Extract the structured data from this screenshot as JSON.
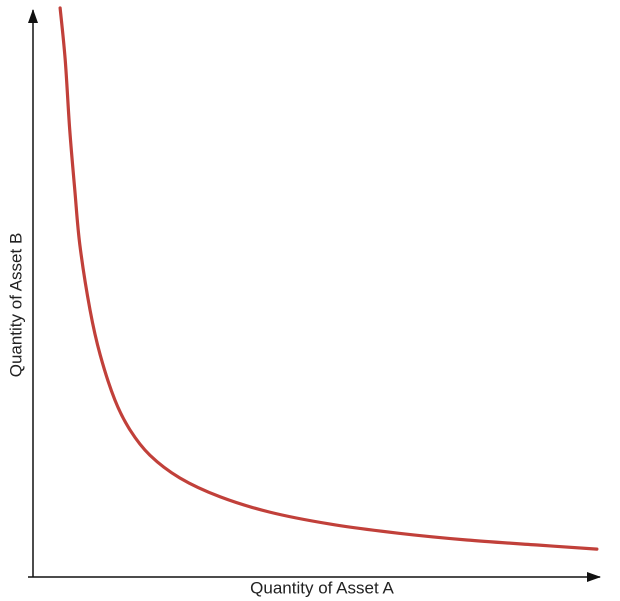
{
  "chart_data": {
    "type": "line",
    "x_label": "Quantity of Asset A",
    "y_label": "Quantity of Asset B",
    "x": [
      4.8,
      5.7,
      6.5,
      7.4,
      8.3,
      10.1,
      11.9,
      14.5,
      17.2,
      20.7,
      26.0,
      33.1,
      41.9,
      52.6,
      64.6,
      76.8,
      89.6,
      99.8
    ],
    "values": [
      100,
      90.9,
      78.6,
      68.0,
      58.3,
      46.9,
      39.0,
      31.1,
      25.8,
      21.4,
      17.4,
      14.1,
      11.4,
      9.3,
      7.7,
      6.5,
      5.6,
      4.9
    ],
    "color": "#c1403a",
    "xlim": [
      0,
      100
    ],
    "ylim": [
      0,
      100
    ]
  }
}
